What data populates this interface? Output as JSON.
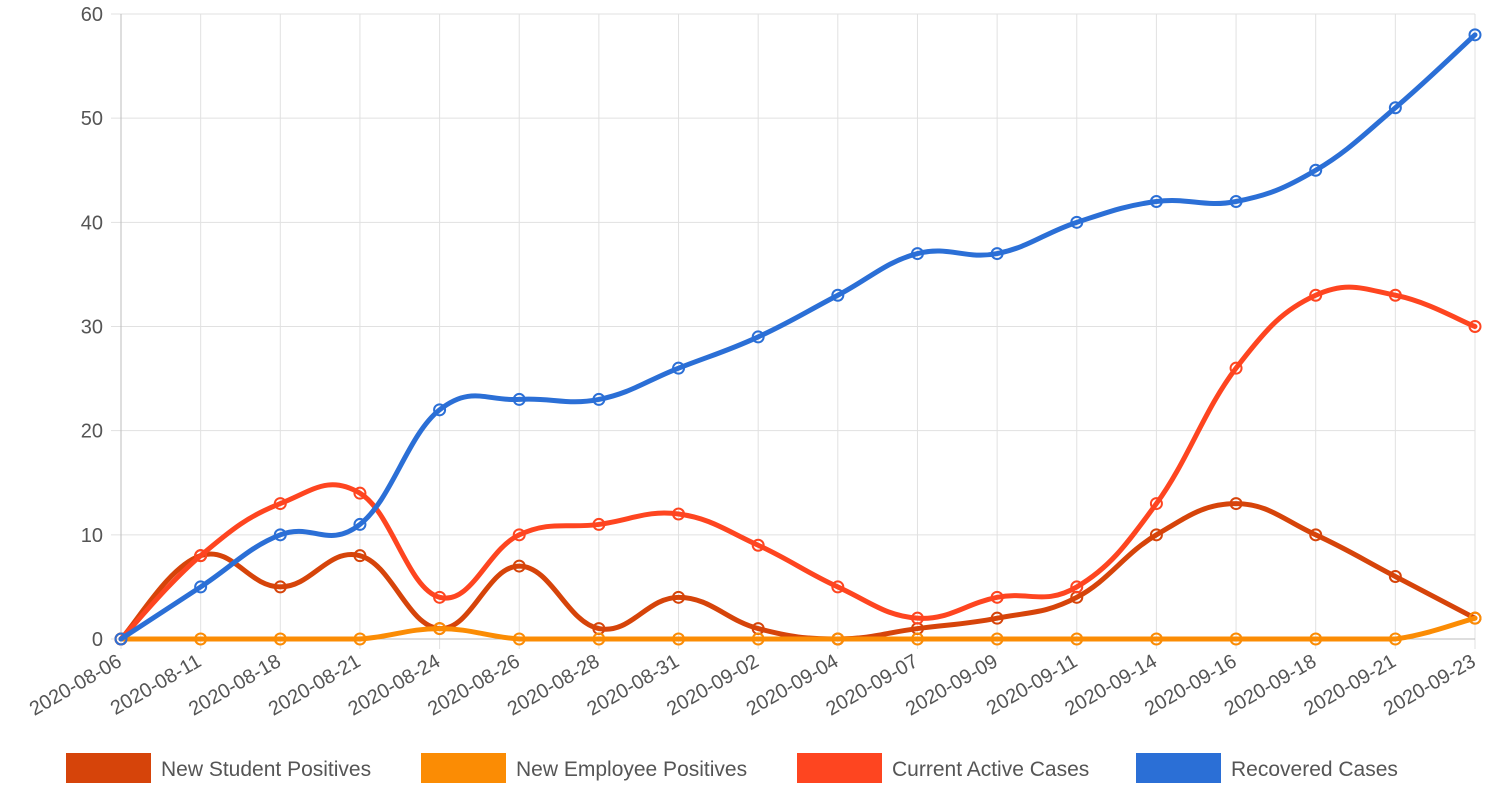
{
  "chart_data": {
    "type": "line",
    "categories": [
      "2020-08-06",
      "2020-08-11",
      "2020-08-18",
      "2020-08-21",
      "2020-08-24",
      "2020-08-26",
      "2020-08-28",
      "2020-08-31",
      "2020-09-02",
      "2020-09-04",
      "2020-09-07",
      "2020-09-09",
      "2020-09-11",
      "2020-09-14",
      "2020-09-16",
      "2020-09-18",
      "2020-09-21",
      "2020-09-23"
    ],
    "ylim": [
      0,
      60
    ],
    "yticks": [
      "0",
      "10",
      "20",
      "30",
      "40",
      "50",
      "60"
    ],
    "grid": true,
    "legend_position": "bottom",
    "series": [
      {
        "name": "New Student Positives",
        "color": "#d6440a",
        "values": [
          0,
          8,
          5,
          8,
          1,
          7,
          1,
          4,
          1,
          0,
          1,
          2,
          4,
          10,
          13,
          10,
          6,
          2
        ]
      },
      {
        "name": "New Employee Positives",
        "color": "#fb8c04",
        "values": [
          0,
          0,
          0,
          0,
          1,
          0,
          0,
          0,
          0,
          0,
          0,
          0,
          0,
          0,
          0,
          0,
          0,
          2
        ]
      },
      {
        "name": "Current Active Cases",
        "color": "#fe4520",
        "values": [
          0,
          8,
          13,
          14,
          4,
          10,
          11,
          12,
          9,
          5,
          2,
          4,
          5,
          13,
          26,
          33,
          33,
          30
        ]
      },
      {
        "name": "Recovered Cases",
        "color": "#2b6fd6",
        "values": [
          0,
          5,
          10,
          11,
          22,
          23,
          23,
          26,
          29,
          33,
          37,
          37,
          40,
          42,
          42,
          45,
          51,
          58
        ]
      }
    ]
  }
}
